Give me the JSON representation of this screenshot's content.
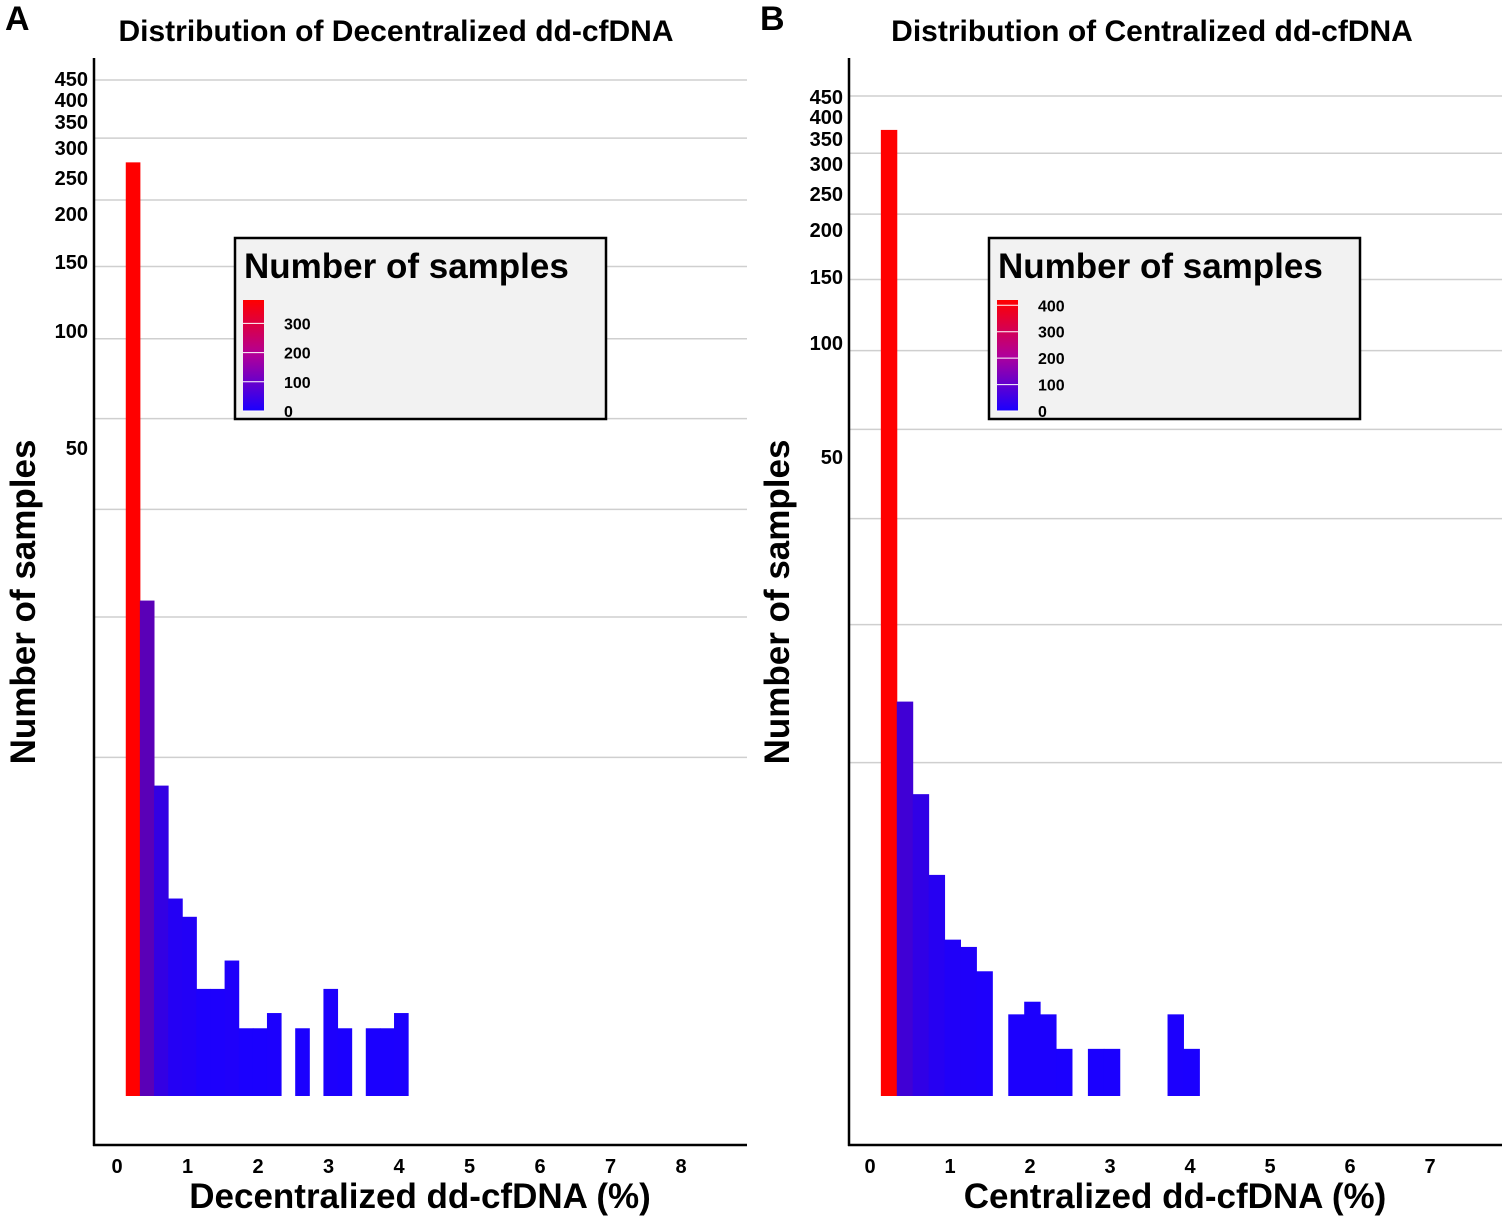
{
  "chart_data": [
    {
      "type": "bar",
      "panel_label": "A",
      "title": "Distribution of Decentralized dd-cfDNA",
      "xlabel": "Decentralized dd-cfDNA (%)",
      "ylabel": "Number of samples",
      "y_scale": "sqrt",
      "xlim": [
        -0.35,
        8.9
      ],
      "x_ticks": [
        0,
        1,
        2,
        3,
        4,
        5,
        6,
        7,
        8
      ],
      "x_tick_labels": [
        "0",
        "1",
        "2",
        "3",
        "4",
        "5",
        "6",
        "7",
        "8"
      ],
      "y_ticks": [
        50,
        100,
        150,
        200,
        250,
        300,
        350,
        400,
        450
      ],
      "y_tick_labels": [
        "50",
        "100",
        "150",
        "200",
        "250",
        "300",
        "350",
        "400",
        "450"
      ],
      "bin_width": 0.2,
      "bin_starts": [
        0.1,
        0.3,
        0.5,
        0.7,
        0.9,
        1.1,
        1.3,
        1.5,
        1.7,
        1.9,
        2.1,
        2.3,
        2.5,
        2.7,
        2.9,
        3.1,
        3.3,
        3.5,
        3.7,
        3.9
      ],
      "values": [
        380,
        107,
        42,
        17,
        14,
        5,
        5,
        8,
        2,
        2,
        3,
        0,
        2,
        0,
        5,
        2,
        0,
        2,
        2,
        3
      ],
      "legend": {
        "title": "Number of samples",
        "ticks": [
          0,
          100,
          200,
          300
        ],
        "tick_labels": [
          "0",
          "100",
          "200",
          "300"
        ],
        "min": 0,
        "max": 380,
        "low_color": "#1a00ff",
        "high_color": "#ff0000"
      }
    },
    {
      "type": "bar",
      "panel_label": "B",
      "title": "Distribution of Centralized dd-cfDNA",
      "xlabel": "Centralized dd-cfDNA (%)",
      "ylabel": "Number of samples",
      "y_scale": "sqrt",
      "xlim": [
        -0.3,
        7.9
      ],
      "x_ticks": [
        0,
        1,
        2,
        3,
        4,
        5,
        6,
        7
      ],
      "x_tick_labels": [
        "0",
        "1",
        "2",
        "3",
        "4",
        "5",
        "6",
        "7"
      ],
      "y_ticks": [
        50,
        100,
        150,
        200,
        250,
        300,
        350,
        400,
        450
      ],
      "y_tick_labels": [
        "50",
        "100",
        "150",
        "200",
        "250",
        "300",
        "350",
        "400",
        "450"
      ],
      "bin_width": 0.2,
      "bin_starts": [
        0.1,
        0.3,
        0.5,
        0.7,
        0.9,
        1.1,
        1.3,
        1.5,
        1.7,
        1.9,
        2.1,
        2.3,
        2.5,
        2.7,
        2.9,
        3.1,
        3.3,
        3.5,
        3.7,
        3.9
      ],
      "values": [
        420,
        70,
        41,
        22,
        11,
        10,
        7,
        0,
        3,
        4,
        3,
        1,
        0,
        1,
        1,
        0,
        0,
        0,
        3,
        1
      ],
      "legend": {
        "title": "Number of samples",
        "ticks": [
          0,
          100,
          200,
          300,
          400
        ],
        "tick_labels": [
          "0",
          "100",
          "200",
          "300",
          "400"
        ],
        "min": 0,
        "max": 420,
        "low_color": "#1a00ff",
        "high_color": "#ff0000"
      }
    }
  ]
}
